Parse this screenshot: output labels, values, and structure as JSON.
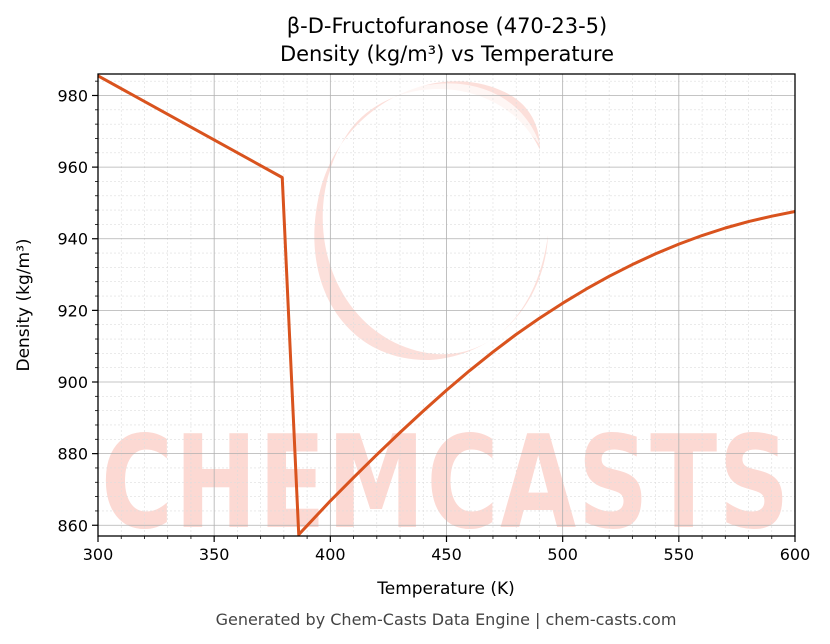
{
  "chart_data": {
    "type": "line",
    "title": "β-D-Fructofuranose (470-23-5)",
    "subtitle": "Density (kg/m³) vs Temperature",
    "xlabel": "Temperature (K)",
    "ylabel": "Density (kg/m³)",
    "xlim": [
      300,
      600
    ],
    "ylim": [
      857,
      986
    ],
    "x_ticks": [
      300,
      350,
      400,
      450,
      500,
      550,
      600
    ],
    "y_ticks": [
      860,
      880,
      900,
      920,
      940,
      960,
      980
    ],
    "grid": true,
    "legend": "none",
    "series": [
      {
        "color": "#d9531e",
        "points": [
          [
            300,
            985.5
          ],
          [
            379.3,
            957.1
          ],
          [
            386.4,
            857.4
          ],
          [
            400,
            866.8
          ],
          [
            410,
            873.3
          ],
          [
            420,
            879.7
          ],
          [
            430,
            885.9
          ],
          [
            440,
            891.9
          ],
          [
            450,
            897.7
          ],
          [
            460,
            903.2
          ],
          [
            470,
            908.4
          ],
          [
            480,
            913.3
          ],
          [
            490,
            917.8
          ],
          [
            500,
            922.0
          ],
          [
            510,
            925.9
          ],
          [
            520,
            929.5
          ],
          [
            530,
            932.8
          ],
          [
            540,
            935.8
          ],
          [
            550,
            938.5
          ],
          [
            560,
            940.9
          ],
          [
            570,
            943.0
          ],
          [
            580,
            944.8
          ],
          [
            590,
            946.3
          ],
          [
            600,
            947.6
          ]
        ]
      }
    ]
  },
  "watermark": {
    "text": "CHEMCASTS",
    "color": "#fcd9d3"
  },
  "footer": "Generated by Chem-Casts Data Engine | chem-casts.com",
  "colors": {
    "line": "#d9531e",
    "grid_major": "#b0b0b0",
    "grid_minor": "#dddddd",
    "axis": "#000000"
  }
}
